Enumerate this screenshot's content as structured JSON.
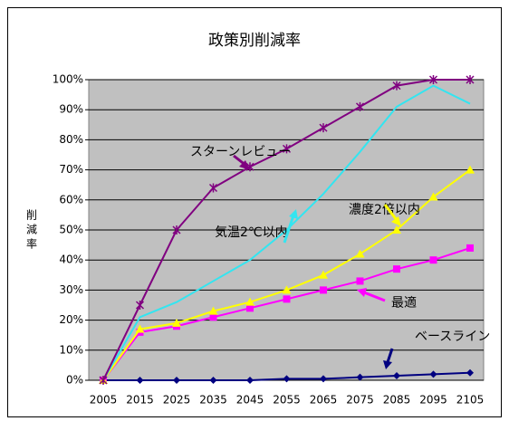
{
  "chart_data": {
    "type": "line",
    "title": "政策別削減率",
    "y_label": "削減率",
    "categories": [
      "2005",
      "2015",
      "2025",
      "2035",
      "2045",
      "2055",
      "2065",
      "2075",
      "2085",
      "2095",
      "2105"
    ],
    "ylim": [
      0,
      100
    ],
    "yticks": [
      {
        "value": 0,
        "label": "0%"
      },
      {
        "value": 10,
        "label": "10%"
      },
      {
        "value": 20,
        "label": "20%"
      },
      {
        "value": 30,
        "label": "30%"
      },
      {
        "value": 40,
        "label": "40%"
      },
      {
        "value": 50,
        "label": "50%"
      },
      {
        "value": 60,
        "label": "60%"
      },
      {
        "value": 70,
        "label": "70%"
      },
      {
        "value": 80,
        "label": "80%"
      },
      {
        "value": 90,
        "label": "90%"
      },
      {
        "value": 100,
        "label": "100%"
      }
    ],
    "grid": true,
    "series": [
      {
        "name": "スターンレビュー",
        "color": "#800080",
        "marker": "asterisk",
        "values": [
          0,
          25,
          50,
          64,
          71,
          77,
          84,
          91,
          98,
          100,
          100
        ]
      },
      {
        "name": "気温2℃以内",
        "color": "#33e5f0",
        "marker": "none",
        "values": [
          0,
          21,
          26,
          33,
          40,
          50,
          62,
          76,
          91,
          98,
          92
        ]
      },
      {
        "name": "濃度2倍以内",
        "color": "#ffff00",
        "marker": "triangle",
        "values": [
          0,
          17,
          19,
          23,
          26,
          30,
          35,
          42,
          50,
          61,
          70
        ]
      },
      {
        "name": "最適",
        "color": "#ff00ff",
        "marker": "square",
        "values": [
          0,
          16,
          18,
          21,
          24,
          27,
          30,
          33,
          37,
          40,
          44
        ]
      },
      {
        "name": "ベースライン",
        "color": "#000080",
        "marker": "diamond",
        "values": [
          0,
          0,
          0,
          0,
          0,
          0.5,
          0.5,
          1,
          1.5,
          2,
          2.5
        ]
      }
    ]
  }
}
